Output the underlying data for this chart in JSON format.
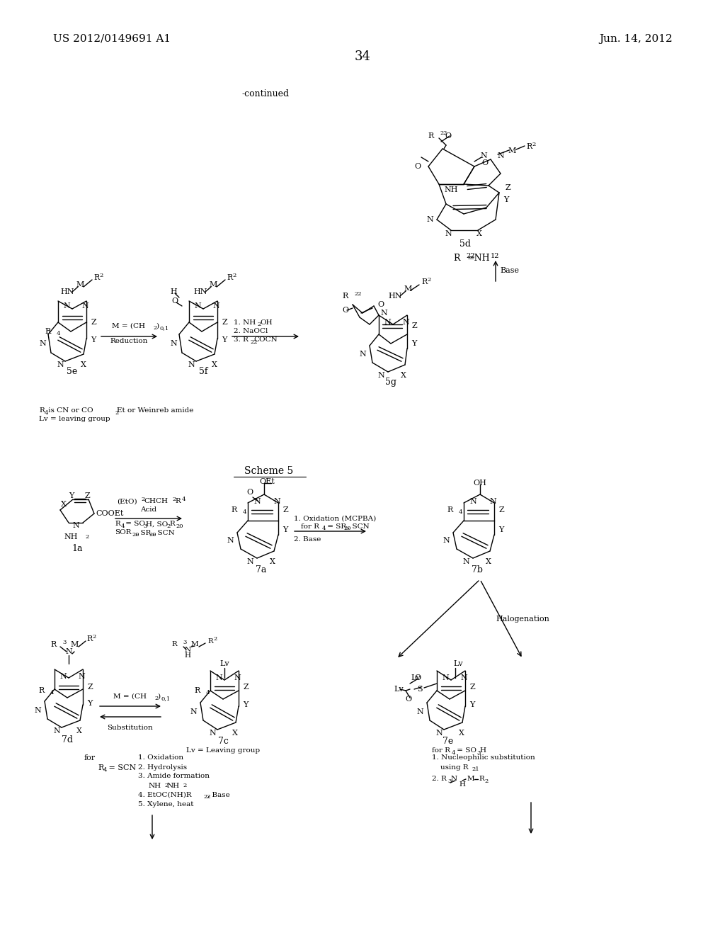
{
  "bg": "#ffffff",
  "header_left": "US 2012/0149691 A1",
  "header_right": "Jun. 14, 2012",
  "page_num": "34",
  "continued": "-continued"
}
